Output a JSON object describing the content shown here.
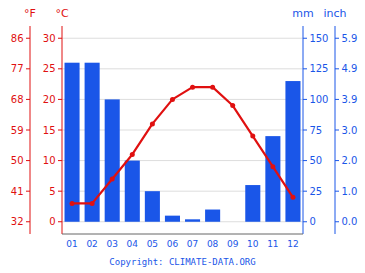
{
  "chart_data": {
    "type": "bar",
    "categories": [
      "01",
      "02",
      "03",
      "04",
      "05",
      "06",
      "07",
      "08",
      "09",
      "10",
      "11",
      "12"
    ],
    "series": [
      {
        "type": "bar",
        "color": "#1a56e8",
        "axis": "y2",
        "values": [
          130,
          130,
          100,
          50,
          25,
          5,
          2,
          10,
          0,
          30,
          70,
          115
        ]
      },
      {
        "type": "line",
        "color": "#e01010",
        "marker": "circle",
        "values": [
          3,
          3,
          7,
          11,
          16,
          20,
          22,
          22,
          19,
          14,
          9,
          4
        ]
      }
    ],
    "ylabel": "°C",
    "ylim": [
      -2,
      32
    ],
    "yticks": [
      0,
      5,
      10,
      15,
      20,
      25,
      30
    ],
    "y3label": "°F",
    "y3lim": [
      -2,
      32
    ],
    "y3ticks": [
      {
        "value": 0,
        "label": "32"
      },
      {
        "value": 5,
        "label": "41"
      },
      {
        "value": 10,
        "label": "50"
      },
      {
        "value": 15,
        "label": "59"
      },
      {
        "value": 20,
        "label": "68"
      },
      {
        "value": 25,
        "label": "77"
      },
      {
        "value": 30,
        "label": "86"
      }
    ],
    "y2label": "mm",
    "y2lim": [
      -10,
      160
    ],
    "y2ticks": [
      0,
      25,
      50,
      75,
      100,
      125,
      150
    ],
    "y4label": "inch",
    "y4lim": [
      -10,
      160
    ],
    "y4ticks": [
      {
        "value": 0,
        "label": "0.0"
      },
      {
        "value": 25,
        "label": "1.0"
      },
      {
        "value": 50,
        "label": "2.0"
      },
      {
        "value": 75,
        "label": "3.0"
      },
      {
        "value": 100,
        "label": "3.9"
      },
      {
        "value": 125,
        "label": "4.9"
      },
      {
        "value": 150,
        "label": "5.9"
      }
    ],
    "annotations": [
      "Copyright: CLIMATE-DATA.ORG"
    ],
    "grid": true
  }
}
